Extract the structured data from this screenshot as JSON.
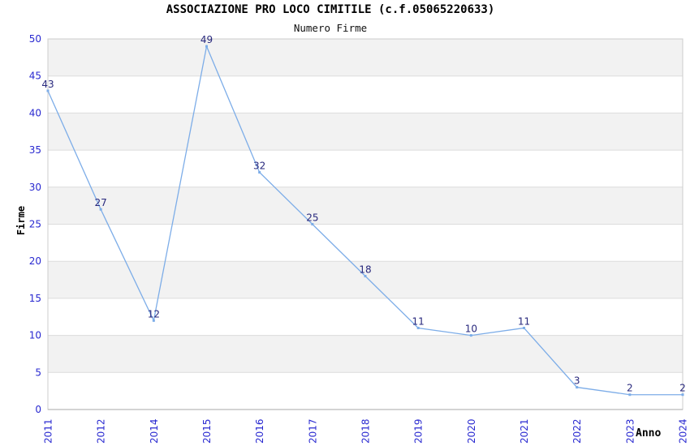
{
  "chart_data": {
    "type": "line",
    "title": "ASSOCIAZIONE PRO LOCO CIMITILE (c.f.05065220633)",
    "subtitle": "Numero Firme",
    "xlabel": "Anno",
    "ylabel": "Firme",
    "categories": [
      "2011",
      "2012",
      "2014",
      "2015",
      "2016",
      "2017",
      "2018",
      "2019",
      "2020",
      "2021",
      "2022",
      "2023",
      "2024"
    ],
    "values": [
      43,
      27,
      12,
      49,
      32,
      25,
      18,
      11,
      10,
      11,
      3,
      2,
      2
    ],
    "ylim": [
      0,
      50
    ],
    "ytick_step": 5,
    "yticks": [
      0,
      5,
      10,
      15,
      20,
      25,
      30,
      35,
      40,
      45,
      50
    ],
    "grid": "alternating-horizontal-bands",
    "legend_position": "none",
    "x_tick_rotation_deg": -90,
    "colors": {
      "line": "#7dade8",
      "marker": "#7dade8",
      "point_label": "#28287d",
      "tick_label": "#2828d0",
      "band": "#f2f2f2",
      "gridline": "#dcdcdc",
      "border": "#cccccc",
      "axis_bottom": "#aaaaaa",
      "title_text": "#000000",
      "background": "#ffffff"
    }
  }
}
